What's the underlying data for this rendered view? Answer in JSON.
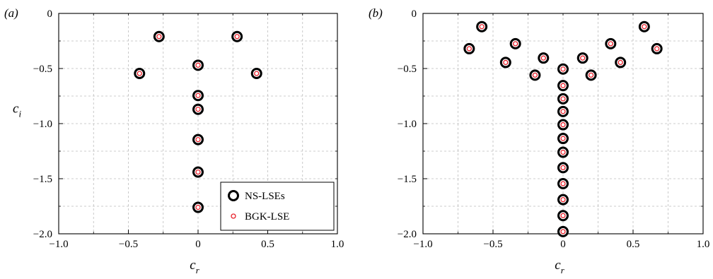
{
  "chart_data": [
    {
      "type": "scatter",
      "panel_label": "(a)",
      "xlabel": {
        "base": "c",
        "sub": "r"
      },
      "ylabel": {
        "base": "c",
        "sub": "i"
      },
      "xlim": [
        -1.0,
        1.0
      ],
      "ylim": [
        -2.0,
        0
      ],
      "xticks": [
        -1.0,
        -0.5,
        0,
        0.5,
        1.0
      ],
      "xtick_labels": [
        "−1.0",
        "−0.5",
        "0",
        "0.5",
        "1.0"
      ],
      "yticks": [
        0,
        -0.5,
        -1.0,
        -1.5,
        -2.0
      ],
      "ytick_labels": [
        "0",
        "−0.5",
        "−1.0",
        "−1.5",
        "−2.0"
      ],
      "grid": true,
      "legend_position": "bottom-right",
      "series": [
        {
          "name": "NS-LSEs",
          "color": "#000000",
          "points": [
            [
              -0.28,
              -0.21
            ],
            [
              0.28,
              -0.21
            ],
            [
              -0.42,
              -0.545
            ],
            [
              0.42,
              -0.545
            ],
            [
              0,
              -0.47
            ],
            [
              0,
              -0.745
            ],
            [
              0,
              -0.87
            ],
            [
              0,
              -1.145
            ],
            [
              0,
              -1.44
            ],
            [
              0,
              -1.76
            ]
          ]
        },
        {
          "name": "BGK-LSE",
          "color": "#e8202a",
          "points": [
            [
              -0.28,
              -0.21
            ],
            [
              0.28,
              -0.21
            ],
            [
              -0.42,
              -0.545
            ],
            [
              0.42,
              -0.545
            ],
            [
              0,
              -0.47
            ],
            [
              0,
              -0.745
            ],
            [
              0,
              -0.87
            ],
            [
              0,
              -1.145
            ],
            [
              0,
              -1.44
            ],
            [
              0,
              -1.76
            ]
          ]
        }
      ]
    },
    {
      "type": "scatter",
      "panel_label": "(b)",
      "xlabel": {
        "base": "c",
        "sub": "r"
      },
      "ylabel": {
        "base": "",
        "sub": ""
      },
      "xlim": [
        -1.0,
        1.0
      ],
      "ylim": [
        -2.0,
        0
      ],
      "xticks": [
        -1.0,
        -0.5,
        0,
        0.5,
        1.0
      ],
      "xtick_labels": [
        "−1.0",
        "−0.5",
        "0",
        "0.5",
        "1.0"
      ],
      "yticks": [
        0,
        -0.5,
        -1.0,
        -1.5,
        -2.0
      ],
      "ytick_labels": [
        "0",
        "−0.5",
        "−1.0",
        "−1.5",
        "−2.0"
      ],
      "grid": true,
      "series": [
        {
          "name": "NS-LSEs",
          "color": "#000000",
          "points": [
            [
              -0.58,
              -0.12
            ],
            [
              0.58,
              -0.12
            ],
            [
              -0.67,
              -0.32
            ],
            [
              0.67,
              -0.32
            ],
            [
              -0.34,
              -0.275
            ],
            [
              0.34,
              -0.275
            ],
            [
              -0.41,
              -0.445
            ],
            [
              0.41,
              -0.445
            ],
            [
              -0.14,
              -0.405
            ],
            [
              0.14,
              -0.405
            ],
            [
              -0.2,
              -0.56
            ],
            [
              0.2,
              -0.56
            ],
            [
              0,
              -0.505
            ],
            [
              0,
              -0.655
            ],
            [
              0,
              -0.775
            ],
            [
              0,
              -0.89
            ],
            [
              0,
              -1.01
            ],
            [
              0,
              -1.135
            ],
            [
              0,
              -1.26
            ],
            [
              0,
              -1.4
            ],
            [
              0,
              -1.545
            ],
            [
              0,
              -1.69
            ],
            [
              0,
              -1.835
            ],
            [
              0,
              -1.98
            ]
          ]
        },
        {
          "name": "BGK-LSE",
          "color": "#e8202a",
          "points": [
            [
              -0.58,
              -0.12
            ],
            [
              0.58,
              -0.12
            ],
            [
              -0.67,
              -0.32
            ],
            [
              0.67,
              -0.32
            ],
            [
              -0.34,
              -0.275
            ],
            [
              0.34,
              -0.275
            ],
            [
              -0.41,
              -0.445
            ],
            [
              0.41,
              -0.445
            ],
            [
              -0.14,
              -0.405
            ],
            [
              0.14,
              -0.405
            ],
            [
              -0.2,
              -0.56
            ],
            [
              0.2,
              -0.56
            ],
            [
              0,
              -0.505
            ],
            [
              0,
              -0.655
            ],
            [
              0,
              -0.775
            ],
            [
              0,
              -0.89
            ],
            [
              0,
              -1.01
            ],
            [
              0,
              -1.135
            ],
            [
              0,
              -1.26
            ],
            [
              0,
              -1.4
            ],
            [
              0,
              -1.545
            ],
            [
              0,
              -1.69
            ],
            [
              0,
              -1.835
            ],
            [
              0,
              -1.98
            ]
          ]
        }
      ]
    }
  ]
}
